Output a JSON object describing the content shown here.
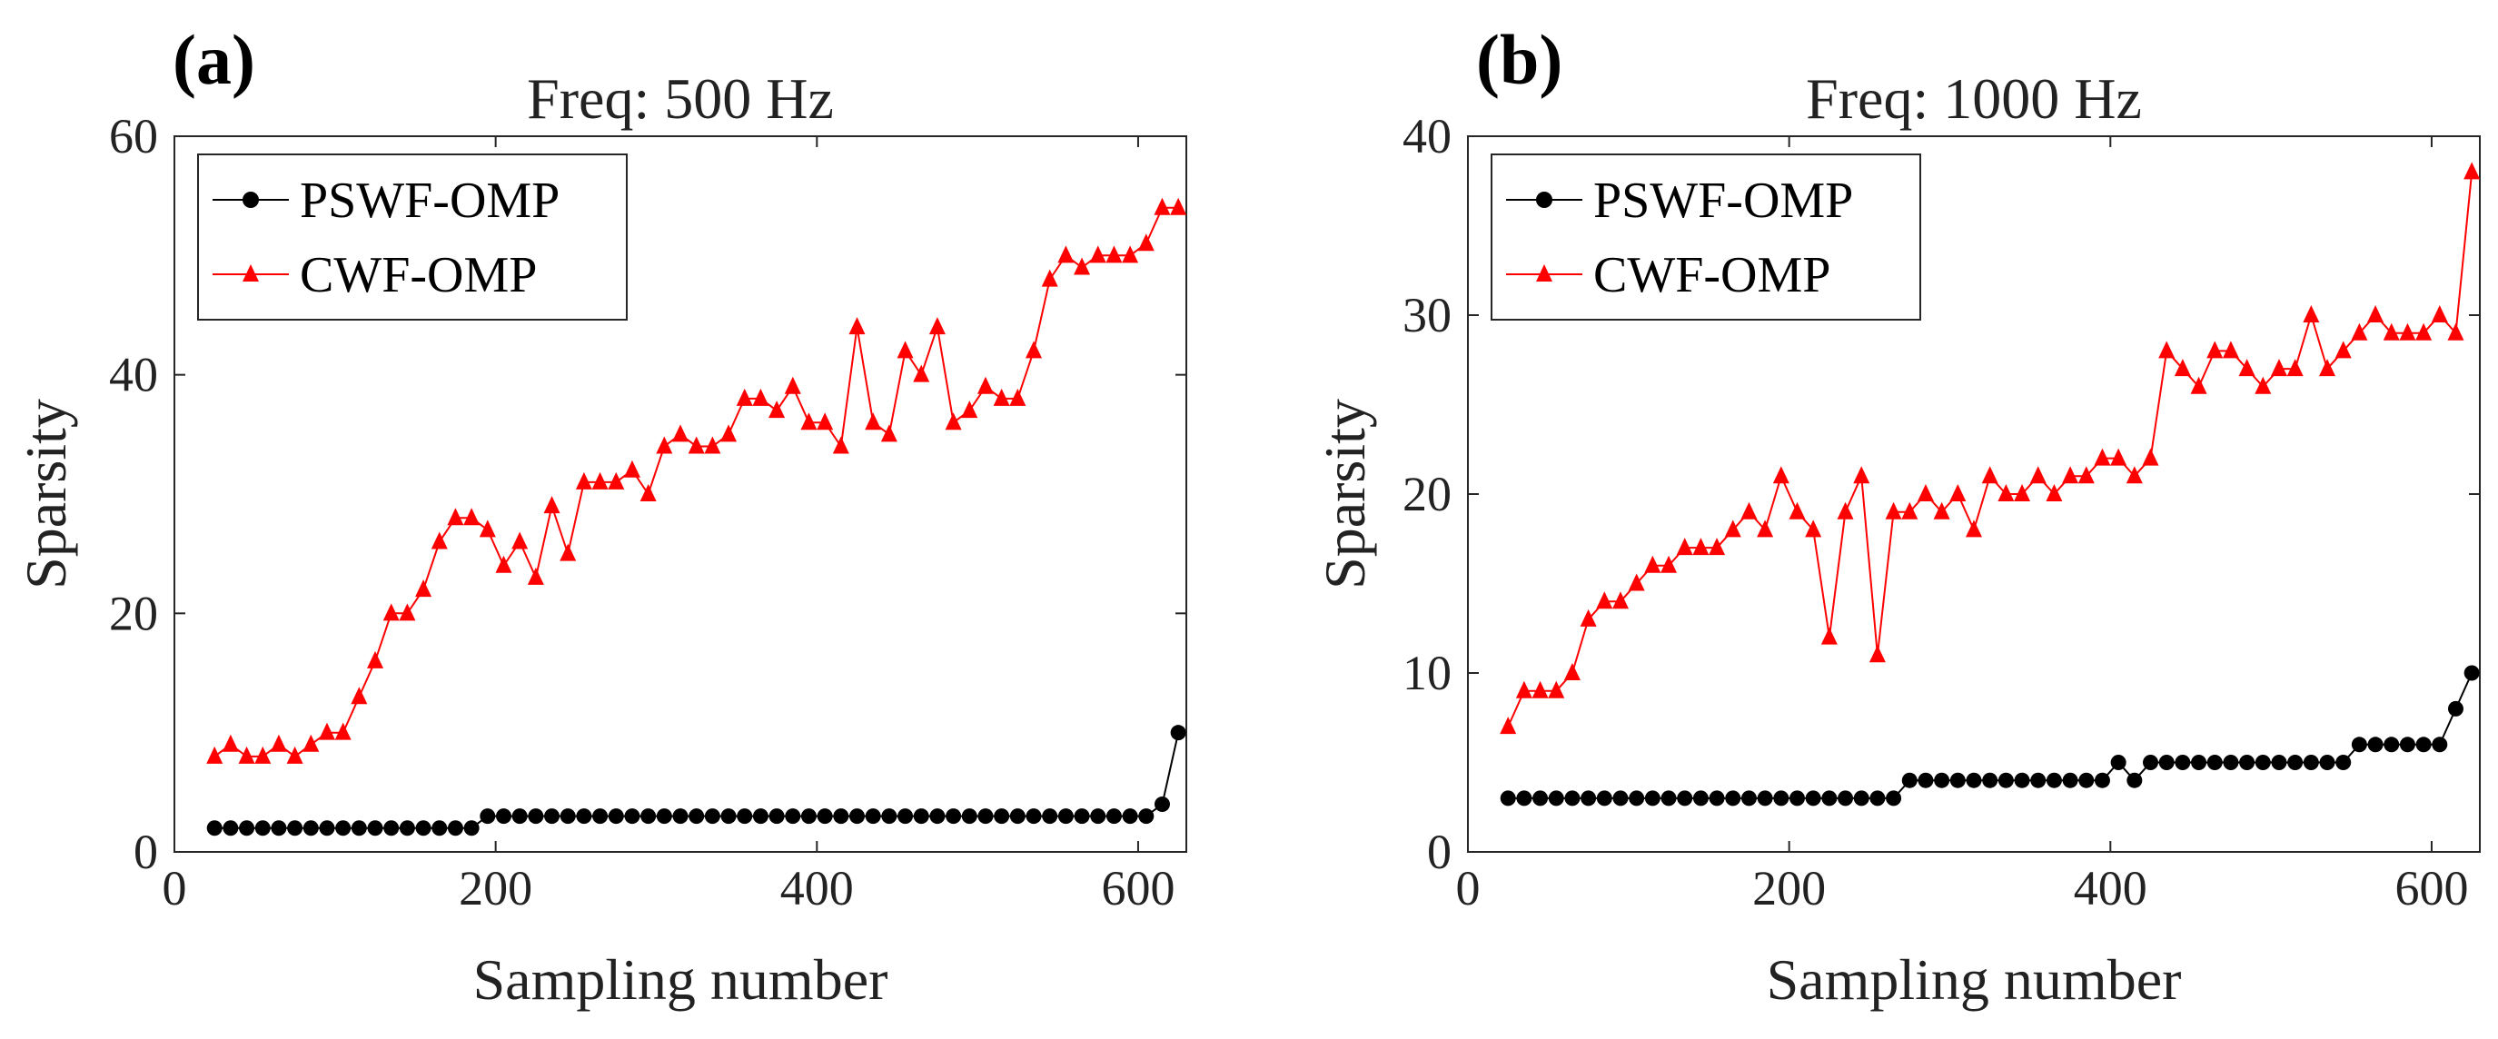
{
  "chart_data": [
    {
      "panel": "(a)",
      "type": "line",
      "title": "Freq: 500 Hz",
      "xlabel": "Sampling number",
      "ylabel": "Sparsity",
      "xlim": [
        0,
        630
      ],
      "ylim": [
        0,
        60
      ],
      "xticks": [
        0,
        200,
        400,
        600
      ],
      "yticks": [
        0,
        20,
        40,
        60
      ],
      "legend_position": "top-left",
      "series": [
        {
          "name": "PSWF-OMP",
          "color": "#000000",
          "marker": "circle",
          "x": [
            25,
            35,
            45,
            55,
            65,
            75,
            85,
            95,
            105,
            115,
            125,
            135,
            145,
            155,
            165,
            175,
            185,
            195,
            205,
            215,
            225,
            235,
            245,
            255,
            265,
            275,
            285,
            295,
            305,
            315,
            325,
            335,
            345,
            355,
            365,
            375,
            385,
            395,
            405,
            415,
            425,
            435,
            445,
            455,
            465,
            475,
            485,
            495,
            505,
            515,
            525,
            535,
            545,
            555,
            565,
            575,
            585,
            595,
            605,
            615,
            625
          ],
          "y": [
            2,
            2,
            2,
            2,
            2,
            2,
            2,
            2,
            2,
            2,
            2,
            2,
            2,
            2,
            2,
            2,
            2,
            3,
            3,
            3,
            3,
            3,
            3,
            3,
            3,
            3,
            3,
            3,
            3,
            3,
            3,
            3,
            3,
            3,
            3,
            3,
            3,
            3,
            3,
            3,
            3,
            3,
            3,
            3,
            3,
            3,
            3,
            3,
            3,
            3,
            3,
            3,
            3,
            3,
            3,
            3,
            3,
            3,
            3,
            4,
            10
          ]
        },
        {
          "name": "CWF-OMP",
          "color": "#ff0000",
          "marker": "triangle",
          "x": [
            25,
            35,
            45,
            55,
            65,
            75,
            85,
            95,
            105,
            115,
            125,
            135,
            145,
            155,
            165,
            175,
            185,
            195,
            205,
            215,
            225,
            235,
            245,
            255,
            265,
            275,
            285,
            295,
            305,
            315,
            325,
            335,
            345,
            355,
            365,
            375,
            385,
            395,
            405,
            415,
            425,
            435,
            445,
            455,
            465,
            475,
            485,
            495,
            505,
            515,
            525,
            535,
            545,
            555,
            565,
            575,
            585,
            595,
            605,
            615,
            625
          ],
          "y": [
            8,
            9,
            8,
            8,
            9,
            8,
            9,
            10,
            10,
            13,
            16,
            20,
            20,
            22,
            26,
            28,
            28,
            27,
            24,
            26,
            23,
            29,
            25,
            31,
            31,
            31,
            32,
            30,
            34,
            35,
            34,
            34,
            35,
            38,
            38,
            37,
            39,
            36,
            36,
            34,
            44,
            36,
            35,
            42,
            40,
            44,
            36,
            37,
            39,
            38,
            38,
            42,
            48,
            50,
            49,
            50,
            50,
            50,
            51,
            54,
            54
          ]
        }
      ]
    },
    {
      "panel": "(b)",
      "type": "line",
      "title": "Freq: 1000 Hz",
      "xlabel": "Sampling number",
      "ylabel": "Sparsity",
      "xlim": [
        0,
        630
      ],
      "ylim": [
        0,
        40
      ],
      "xticks": [
        0,
        200,
        400,
        600
      ],
      "yticks": [
        0,
        10,
        20,
        30,
        40
      ],
      "legend_position": "top-left",
      "series": [
        {
          "name": "PSWF-OMP",
          "color": "#000000",
          "marker": "circle",
          "x": [
            25,
            35,
            45,
            55,
            65,
            75,
            85,
            95,
            105,
            115,
            125,
            135,
            145,
            155,
            165,
            175,
            185,
            195,
            205,
            215,
            225,
            235,
            245,
            255,
            265,
            275,
            285,
            295,
            305,
            315,
            325,
            335,
            345,
            355,
            365,
            375,
            385,
            395,
            405,
            415,
            425,
            435,
            445,
            455,
            465,
            475,
            485,
            495,
            505,
            515,
            525,
            535,
            545,
            555,
            565,
            575,
            585,
            595,
            605,
            615,
            625
          ],
          "y": [
            3,
            3,
            3,
            3,
            3,
            3,
            3,
            3,
            3,
            3,
            3,
            3,
            3,
            3,
            3,
            3,
            3,
            3,
            3,
            3,
            3,
            3,
            3,
            3,
            3,
            4,
            4,
            4,
            4,
            4,
            4,
            4,
            4,
            4,
            4,
            4,
            4,
            4,
            5,
            4,
            5,
            5,
            5,
            5,
            5,
            5,
            5,
            5,
            5,
            5,
            5,
            5,
            5,
            6,
            6,
            6,
            6,
            6,
            6,
            8,
            10
          ]
        },
        {
          "name": "CWF-OMP",
          "color": "#ff0000",
          "marker": "triangle",
          "x": [
            25,
            35,
            45,
            55,
            65,
            75,
            85,
            95,
            105,
            115,
            125,
            135,
            145,
            155,
            165,
            175,
            185,
            195,
            205,
            215,
            225,
            235,
            245,
            255,
            265,
            275,
            285,
            295,
            305,
            315,
            325,
            335,
            345,
            355,
            365,
            375,
            385,
            395,
            405,
            415,
            425,
            435,
            445,
            455,
            465,
            475,
            485,
            495,
            505,
            515,
            525,
            535,
            545,
            555,
            565,
            575,
            585,
            595,
            605,
            615,
            625
          ],
          "y": [
            7,
            9,
            9,
            9,
            10,
            13,
            14,
            14,
            15,
            16,
            16,
            17,
            17,
            17,
            18,
            19,
            18,
            21,
            19,
            18,
            12,
            19,
            21,
            11,
            19,
            19,
            20,
            19,
            20,
            18,
            21,
            20,
            20,
            21,
            20,
            21,
            21,
            22,
            22,
            21,
            22,
            28,
            27,
            26,
            28,
            28,
            27,
            26,
            27,
            27,
            30,
            27,
            28,
            29,
            30,
            29,
            29,
            29,
            30,
            29,
            38
          ]
        }
      ]
    }
  ]
}
